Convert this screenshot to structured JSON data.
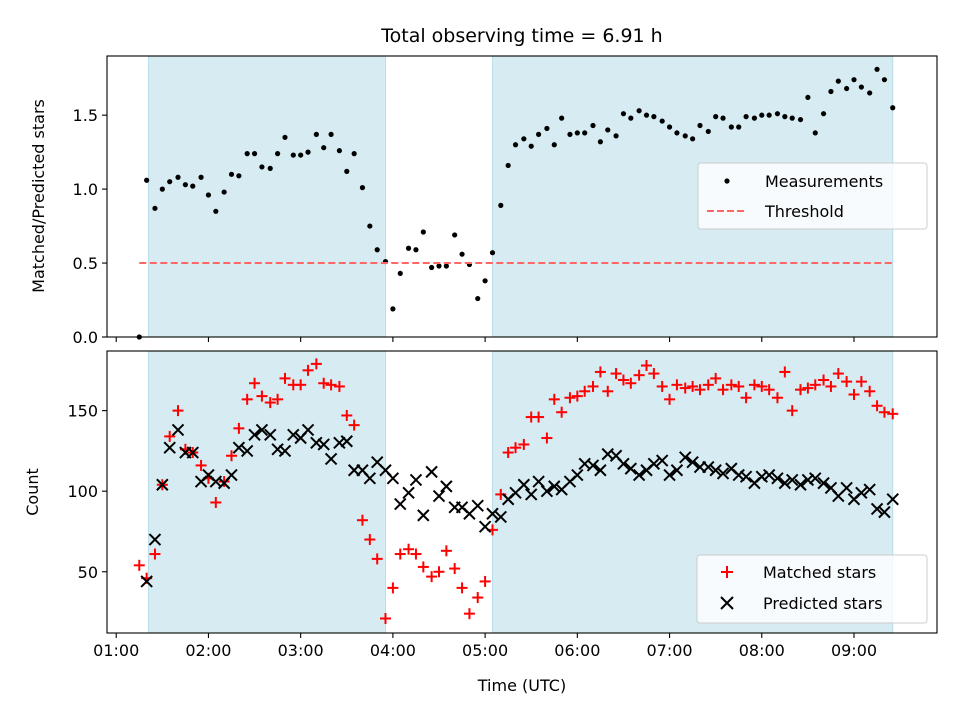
{
  "chart_data": [
    {
      "type": "scatter",
      "title": "Total observing time = 6.91 h",
      "xlabel": "",
      "ylabel": "Matched/Predicted stars",
      "ylim": [
        0.0,
        1.9
      ],
      "yticks": [
        0.0,
        0.5,
        1.0,
        1.5
      ],
      "ytick_labels": [
        "0.0",
        "0.5",
        "1.0",
        "1.5"
      ],
      "xlim": [
        0.9,
        9.9
      ],
      "xticks": [
        1,
        2,
        3,
        4,
        5,
        6,
        7,
        8,
        9
      ],
      "show_xtick_labels": false,
      "grid": false,
      "legend": "center-right",
      "shaded_intervals": [
        [
          1.35,
          3.92
        ],
        [
          5.08,
          9.42
        ]
      ],
      "series": [
        {
          "name": "Measurements",
          "marker": "dot",
          "color": "#000000",
          "x": [
            1.25,
            1.33,
            1.42,
            1.5,
            1.58,
            1.67,
            1.75,
            1.83,
            1.92,
            2.0,
            2.08,
            2.17,
            2.25,
            2.33,
            2.42,
            2.5,
            2.58,
            2.67,
            2.75,
            2.83,
            2.92,
            3.0,
            3.08,
            3.17,
            3.25,
            3.33,
            3.42,
            3.5,
            3.58,
            3.67,
            3.75,
            3.83,
            3.92,
            4.0,
            4.08,
            4.17,
            4.25,
            4.33,
            4.42,
            4.5,
            4.58,
            4.67,
            4.75,
            4.83,
            4.92,
            5.0,
            5.08,
            5.17,
            5.25,
            5.33,
            5.42,
            5.5,
            5.58,
            5.67,
            5.75,
            5.83,
            5.92,
            6.0,
            6.08,
            6.17,
            6.25,
            6.33,
            6.42,
            6.5,
            6.58,
            6.67,
            6.75,
            6.83,
            6.92,
            7.0,
            7.08,
            7.17,
            7.25,
            7.33,
            7.42,
            7.5,
            7.58,
            7.67,
            7.75,
            7.83,
            7.92,
            8.0,
            8.08,
            8.17,
            8.25,
            8.33,
            8.42,
            8.5,
            8.58,
            8.67,
            8.75,
            8.83,
            8.92,
            9.0,
            9.08,
            9.17,
            9.25,
            9.33,
            9.42
          ],
          "y": [
            0.0,
            1.06,
            0.87,
            1.0,
            1.05,
            1.08,
            1.03,
            1.02,
            1.08,
            0.96,
            0.85,
            0.98,
            1.1,
            1.09,
            1.24,
            1.24,
            1.15,
            1.14,
            1.24,
            1.35,
            1.23,
            1.23,
            1.25,
            1.37,
            1.28,
            1.37,
            1.26,
            1.12,
            1.24,
            1.01,
            0.75,
            0.59,
            0.51,
            0.19,
            0.43,
            0.6,
            0.59,
            0.71,
            0.47,
            0.48,
            0.48,
            0.69,
            0.56,
            0.49,
            0.26,
            0.38,
            0.57,
            0.89,
            1.16,
            1.3,
            1.34,
            1.29,
            1.37,
            1.41,
            1.3,
            1.48,
            1.37,
            1.38,
            1.38,
            1.43,
            1.32,
            1.4,
            1.36,
            1.51,
            1.48,
            1.53,
            1.5,
            1.49,
            1.46,
            1.42,
            1.38,
            1.36,
            1.34,
            1.43,
            1.39,
            1.49,
            1.48,
            1.42,
            1.42,
            1.49,
            1.48,
            1.5,
            1.5,
            1.51,
            1.49,
            1.48,
            1.47,
            1.62,
            1.38,
            1.51,
            1.66,
            1.73,
            1.68,
            1.74,
            1.69,
            1.65,
            1.81,
            1.74,
            1.55
          ]
        },
        {
          "name": "Threshold",
          "type": "line",
          "style": "dashed",
          "color": "#ff6666",
          "x": [
            1.25,
            9.42
          ],
          "y": [
            0.5,
            0.5
          ]
        }
      ]
    },
    {
      "type": "scatter",
      "title": "",
      "xlabel": "Time (UTC)",
      "ylabel": "Count",
      "ylim": [
        12,
        187
      ],
      "yticks": [
        50,
        100,
        150
      ],
      "ytick_labels": [
        "50",
        "100",
        "150"
      ],
      "xlim": [
        0.9,
        9.9
      ],
      "xticks": [
        1,
        2,
        3,
        4,
        5,
        6,
        7,
        8,
        9
      ],
      "xtick_labels": [
        "01:00",
        "02:00",
        "03:00",
        "04:00",
        "05:00",
        "06:00",
        "07:00",
        "08:00",
        "09:00"
      ],
      "grid": false,
      "legend": "bottom-right",
      "shaded_intervals": [
        [
          1.35,
          3.92
        ],
        [
          5.08,
          9.42
        ]
      ],
      "series": [
        {
          "name": "Matched stars",
          "marker": "plus",
          "color": "#ff0000",
          "x": [
            1.25,
            1.33,
            1.42,
            1.5,
            1.58,
            1.67,
            1.75,
            1.83,
            1.92,
            2.0,
            2.08,
            2.17,
            2.25,
            2.33,
            2.42,
            2.5,
            2.58,
            2.67,
            2.75,
            2.83,
            2.92,
            3.0,
            3.08,
            3.17,
            3.25,
            3.33,
            3.42,
            3.5,
            3.58,
            3.67,
            3.75,
            3.83,
            3.92,
            4.0,
            4.08,
            4.17,
            4.25,
            4.33,
            4.42,
            4.5,
            4.58,
            4.67,
            4.75,
            4.83,
            4.92,
            5.0,
            5.08,
            5.17,
            5.25,
            5.33,
            5.42,
            5.5,
            5.58,
            5.67,
            5.75,
            5.83,
            5.92,
            6.0,
            6.08,
            6.17,
            6.25,
            6.33,
            6.42,
            6.5,
            6.58,
            6.67,
            6.75,
            6.83,
            6.92,
            7.0,
            7.08,
            7.17,
            7.25,
            7.33,
            7.42,
            7.5,
            7.58,
            7.67,
            7.75,
            7.83,
            7.92,
            8.0,
            8.08,
            8.17,
            8.25,
            8.33,
            8.42,
            8.5,
            8.58,
            8.67,
            8.75,
            8.83,
            8.92,
            9.0,
            9.08,
            9.17,
            9.25,
            9.33,
            9.42
          ],
          "y": [
            54,
            46,
            61,
            104,
            134,
            150,
            126,
            124,
            116,
            108,
            93,
            106,
            122,
            139,
            157,
            167,
            159,
            155,
            157,
            170,
            166,
            166,
            175,
            179,
            167,
            166,
            165,
            147,
            141,
            82,
            70,
            58,
            21,
            40,
            61,
            64,
            61,
            53,
            47,
            50,
            63,
            52,
            40,
            24,
            34,
            44,
            76,
            98,
            124,
            127,
            129,
            146,
            146,
            133,
            157,
            149,
            158,
            159,
            162,
            165,
            174,
            162,
            173,
            169,
            167,
            172,
            178,
            173,
            165,
            157,
            166,
            164,
            165,
            163,
            166,
            170,
            163,
            166,
            165,
            158,
            166,
            165,
            163,
            158,
            174,
            150,
            163,
            164,
            166,
            169,
            165,
            173,
            168,
            160,
            168,
            162,
            153,
            149,
            148
          ],
          "label_note": ""
        },
        {
          "name": "Predicted stars",
          "marker": "x",
          "color": "#000000",
          "x": [
            1.33,
            1.42,
            1.5,
            1.58,
            1.67,
            1.75,
            1.83,
            1.92,
            2.0,
            2.08,
            2.17,
            2.25,
            2.33,
            2.42,
            2.5,
            2.58,
            2.67,
            2.75,
            2.83,
            2.92,
            3.0,
            3.08,
            3.17,
            3.25,
            3.33,
            3.42,
            3.5,
            3.58,
            3.67,
            3.75,
            3.83,
            3.92,
            4.0,
            4.08,
            4.17,
            4.25,
            4.33,
            4.42,
            4.5,
            4.58,
            4.67,
            4.75,
            4.83,
            4.92,
            5.0,
            5.08,
            5.17,
            5.25,
            5.33,
            5.42,
            5.5,
            5.58,
            5.67,
            5.75,
            5.83,
            5.92,
            6.0,
            6.08,
            6.17,
            6.25,
            6.33,
            6.42,
            6.5,
            6.58,
            6.67,
            6.75,
            6.83,
            6.92,
            7.0,
            7.08,
            7.17,
            7.25,
            7.33,
            7.42,
            7.5,
            7.58,
            7.67,
            7.75,
            7.83,
            7.92,
            8.0,
            8.08,
            8.17,
            8.25,
            8.33,
            8.42,
            8.5,
            8.58,
            8.67,
            8.75,
            8.83,
            8.92,
            9.0,
            9.08,
            9.17,
            9.25,
            9.33,
            9.42
          ],
          "y": [
            44,
            70,
            104,
            127,
            138,
            124,
            124,
            106,
            110,
            106,
            105,
            110,
            127,
            125,
            135,
            138,
            135,
            126,
            125,
            135,
            133,
            138,
            130,
            129,
            120,
            130,
            131,
            113,
            113,
            108,
            118,
            113,
            108,
            92,
            99,
            107,
            85,
            112,
            97,
            103,
            90,
            90,
            86,
            91,
            78,
            86,
            84,
            95,
            99,
            104,
            98,
            106,
            100,
            103,
            101,
            106,
            110,
            117,
            116,
            113,
            123,
            122,
            117,
            114,
            110,
            113,
            117,
            119,
            110,
            113,
            121,
            118,
            115,
            115,
            113,
            111,
            114,
            110,
            109,
            105,
            109,
            110,
            108,
            105,
            107,
            104,
            107,
            108,
            105,
            102,
            97,
            102,
            95,
            99,
            101,
            89,
            87,
            95
          ]
        }
      ]
    }
  ]
}
